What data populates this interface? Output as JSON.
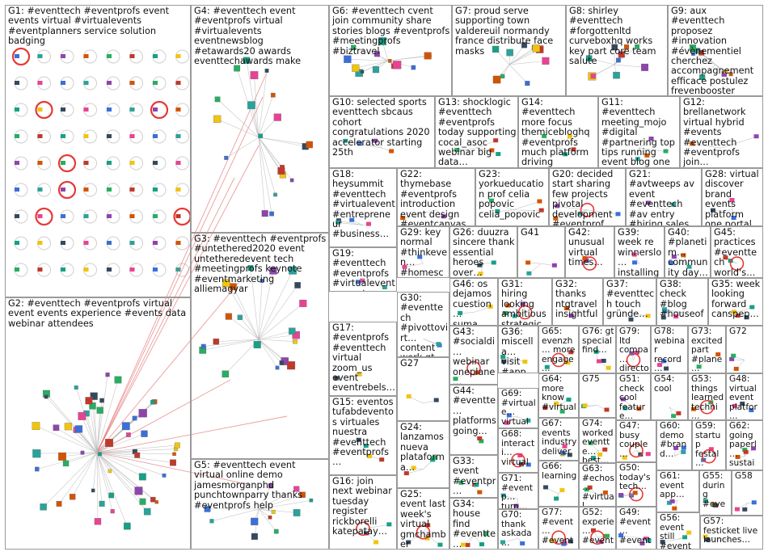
{
  "groups": [
    {
      "id": "G1",
      "text": "G1: #eventtech #eventprofs event events virtual #virtualevents #eventplanners service solution badging",
      "size": "big"
    },
    {
      "id": "G2",
      "text": "G2: #eventtech #eventprofs virtual event events experience #events data webinar attendees",
      "size": "big"
    },
    {
      "id": "G3",
      "text": "G3: #eventtech #eventprofs #untethered2020 event untetheredevent tech #meetingprofs keynote #eventmarketing alliemagyar",
      "size": "big"
    },
    {
      "id": "G4",
      "text": "G4: #eventtech event #eventprofs virtual #virtualevents eventnewsblog #etawards20 awards eventtechawards make",
      "size": "big"
    },
    {
      "id": "G5",
      "text": "G5: #eventtech event virtual online demo jamesmorganphd punchtownparry thanks #eventprofs help",
      "size": "big"
    },
    {
      "id": "G6",
      "text": "G6: #eventtech cvent join community share stories blogs #eventprofs #meetingprofs #biztravel",
      "size": "big"
    },
    {
      "id": "G7",
      "text": "G7: proud serve supporting town valdereuil normandy france distribute face masks",
      "size": "big"
    },
    {
      "id": "G8",
      "text": "G8: shirley #eventtech #forgottenltd curveboxhq works key part core team salute",
      "size": "big"
    },
    {
      "id": "G9",
      "text": "G9: aux #eventtech proposez #innovation #évènementiel cherchez accompagnement efficace postulez frevenbooster",
      "size": "big"
    },
    {
      "id": "G10",
      "text": "G10: selected sports eventtech sbcaus cohort congratulations 2020 accelerator starting 25th",
      "size": "big"
    },
    {
      "id": "G11",
      "text": "G11: #eventtech meeting_mojo #digital #partnering top tips running event blog one",
      "size": "big"
    },
    {
      "id": "G12",
      "text": "G12: brellanetwork virtual hybrid #events #eventtech #eventprofs join…",
      "size": "big"
    },
    {
      "id": "G13",
      "text": "G13: shocklogic #eventtech #eventprofs today supporting cocal_asoc webinar big data…",
      "size": "big"
    },
    {
      "id": "G14",
      "text": "G14: #eventtech more focus themicebloghq #eventprofs much platform driving #engagement…",
      "size": "big"
    },
    {
      "id": "G15",
      "text": "G15: eventos tufabdeventos virtuales nuestra #eventtech #eventprofs…",
      "size": "big"
    },
    {
      "id": "G16",
      "text": "G16: join next webinar tuesday register rickborelli katepatay…",
      "size": "big"
    },
    {
      "id": "G17",
      "text": "G17: #eventprofs #eventtech virtual zoom_us event eventrebels…",
      "size": "big"
    },
    {
      "id": "G18",
      "text": "G18: heysummit #eventtech #virtualevent #entrepreneur #business…",
      "size": "big"
    },
    {
      "id": "G19",
      "text": "G19: #eventtech #eventprofs #virtualevents eventscase know…",
      "size": "big"
    },
    {
      "id": "G20",
      "text": "G20: decided start sharing few projects pivotal development #eventprof…",
      "size": "big"
    },
    {
      "id": "G21",
      "text": "G21: #avtweeps av event #eventtech #av entry #hiring sales executive…",
      "size": "big"
    },
    {
      "id": "G22",
      "text": "G22: thymebase #eventprofs introduction event design #eventcanvas…",
      "size": "big"
    },
    {
      "id": "G23",
      "text": "G23: yorkueducation prof celia popovic celia_popovic…",
      "size": "big"
    },
    {
      "id": "G24",
      "text": "G24: lanzamos nueva plataforma…",
      "size": "big"
    },
    {
      "id": "G25",
      "text": "G25: event last week's virtual gmchamber asked…",
      "size": "big"
    },
    {
      "id": "G26",
      "text": "G26: duuzra sincere thank essential heroes over…",
      "size": "big"
    },
    {
      "id": "G27",
      "text": "G27",
      "size": "big"
    },
    {
      "id": "G28",
      "text": "G28: virtual discover brand events platform one portal…",
      "size": "big"
    },
    {
      "id": "G29",
      "text": "G29: key normal #thinkeven… #homesch… #series…",
      "size": "big"
    },
    {
      "id": "G30",
      "text": "G30: #eventtech #pivottovirt… content work gt true",
      "size": "big"
    },
    {
      "id": "G31",
      "text": "G31: hiring looking ambitious strategic…",
      "size": "big"
    },
    {
      "id": "G32",
      "text": "G32: thanks ntgtravel insightful…",
      "size": "big"
    },
    {
      "id": "G33",
      "text": "G33: event #eventpr… #eventte…",
      "size": "big"
    },
    {
      "id": "G34",
      "text": "G34: house find #eventte… church…",
      "size": "big"
    },
    {
      "id": "G35",
      "text": "G35: week looking forward canspep…",
      "size": "big"
    },
    {
      "id": "G36",
      "text": "G36: miscella… visit #app #charities #busine…",
      "size": "big"
    },
    {
      "id": "G37",
      "text": "G37: #eventtech touch gründe…",
      "size": "big"
    },
    {
      "id": "G38",
      "text": "G38: check #blog #houseof… streaming…",
      "size": "big"
    },
    {
      "id": "G39",
      "text": "G39: week re winnerslo… installing…",
      "size": "big"
    },
    {
      "id": "G40",
      "text": "G40: #planetim… community day…",
      "size": "big"
    },
    {
      "id": "G41",
      "text": "G41",
      "size": "big"
    },
    {
      "id": "G42",
      "text": "G42: unusual virtual times…",
      "size": "big"
    },
    {
      "id": "G43",
      "text": "G43: #socialdi… webinar oneplane…",
      "size": "big"
    },
    {
      "id": "G44",
      "text": "G44: #eventte… platforms going…",
      "size": "big"
    },
    {
      "id": "G45",
      "text": "G45: practices #eventtech world's…",
      "size": "big"
    },
    {
      "id": "G46",
      "text": "G46: os dejamos cuestion… suma…",
      "size": "big"
    },
    {
      "id": "G47",
      "text": "G47: busy couple…",
      "size": "small"
    },
    {
      "id": "G48",
      "text": "G48: virtual event platfor…",
      "size": "small"
    },
    {
      "id": "G49",
      "text": "G49: #event… #event…",
      "size": "small"
    },
    {
      "id": "G50",
      "text": "G50: today's tech…",
      "size": "small"
    },
    {
      "id": "G51",
      "text": "G51: check cool feature…",
      "size": "small"
    },
    {
      "id": "G52",
      "text": "G52: experie… #event… #eventt…",
      "size": "small"
    },
    {
      "id": "G53",
      "text": "G53: things learned techni…",
      "size": "small"
    },
    {
      "id": "G54",
      "text": "G54: cool",
      "size": "small"
    },
    {
      "id": "G55",
      "text": "G55: during #eve… more",
      "size": "small"
    },
    {
      "id": "G56",
      "text": "G56: event still #event…",
      "size": "small"
    },
    {
      "id": "G57",
      "text": "G57: festicket live launches…",
      "size": "small"
    },
    {
      "id": "G58",
      "text": "G58",
      "size": "small"
    },
    {
      "id": "G59",
      "text": "G59: startup festal…",
      "size": "small"
    },
    {
      "id": "G60",
      "text": "G60: demo #brand…",
      "size": "small"
    },
    {
      "id": "G61",
      "text": "G61: event app…",
      "size": "small"
    },
    {
      "id": "G62",
      "text": "G62: going paperl… sustai…",
      "size": "small"
    },
    {
      "id": "G63",
      "text": "G63: #echos… #virtual…",
      "size": "small"
    },
    {
      "id": "G64",
      "text": "G64: more know #virtual…",
      "size": "small"
    },
    {
      "id": "G65",
      "text": "G65: evenzh… more engage…",
      "size": "small"
    },
    {
      "id": "G66",
      "text": "G66: learning",
      "size": "small"
    },
    {
      "id": "G67",
      "text": "G67: events industry deliver…",
      "size": "small"
    },
    {
      "id": "G68",
      "text": "G68: interacti… virtual…",
      "size": "small"
    },
    {
      "id": "G69",
      "text": "G69: #virtuale… virtual…",
      "size": "small"
    },
    {
      "id": "G70",
      "text": "G70: thank askada…",
      "size": "small"
    },
    {
      "id": "G71",
      "text": "G71: #eventp… turn…",
      "size": "small"
    },
    {
      "id": "G72",
      "text": "G72",
      "size": "small"
    },
    {
      "id": "G73",
      "text": "G73: excited part #plane…",
      "size": "small"
    },
    {
      "id": "G74",
      "text": "G74: worked eventte… best…",
      "size": "small"
    },
    {
      "id": "G75",
      "text": "G75",
      "size": "small"
    },
    {
      "id": "G76",
      "text": "G76: gt special find…",
      "size": "small"
    },
    {
      "id": "G77",
      "text": "G77: #event… #event… #eventt…",
      "size": "small"
    },
    {
      "id": "G78",
      "text": "G78: webinar record… demoi…",
      "size": "small"
    },
    {
      "id": "G79",
      "text": "G79: ltd compa… directo… without…",
      "size": "small"
    }
  ],
  "colors": {
    "border": "#9a9a9a",
    "edge": "#b8b8b8",
    "edge_highlight": "#e57373",
    "self_loop": "#e53935",
    "node_fill": "#d8d8d8"
  }
}
